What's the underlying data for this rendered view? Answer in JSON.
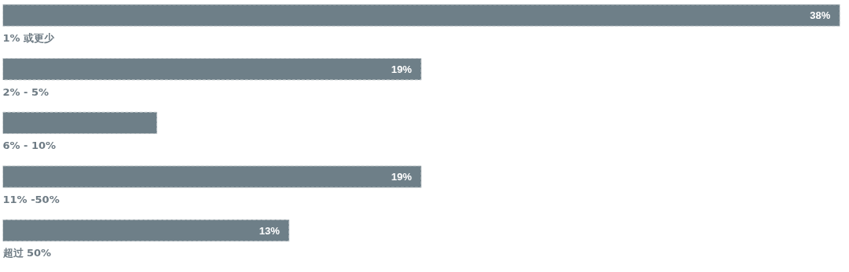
{
  "chart_data": {
    "type": "bar",
    "orientation": "horizontal",
    "categories": [
      "1% 或更少",
      "2% - 5%",
      "6% - 10%",
      "11% -50%",
      "超过 50%"
    ],
    "values": [
      38,
      19,
      7,
      19,
      13
    ],
    "value_labels": [
      "38%",
      "19%",
      null,
      "19%",
      "13%"
    ],
    "color": "#6e7f88",
    "grid": false
  }
}
